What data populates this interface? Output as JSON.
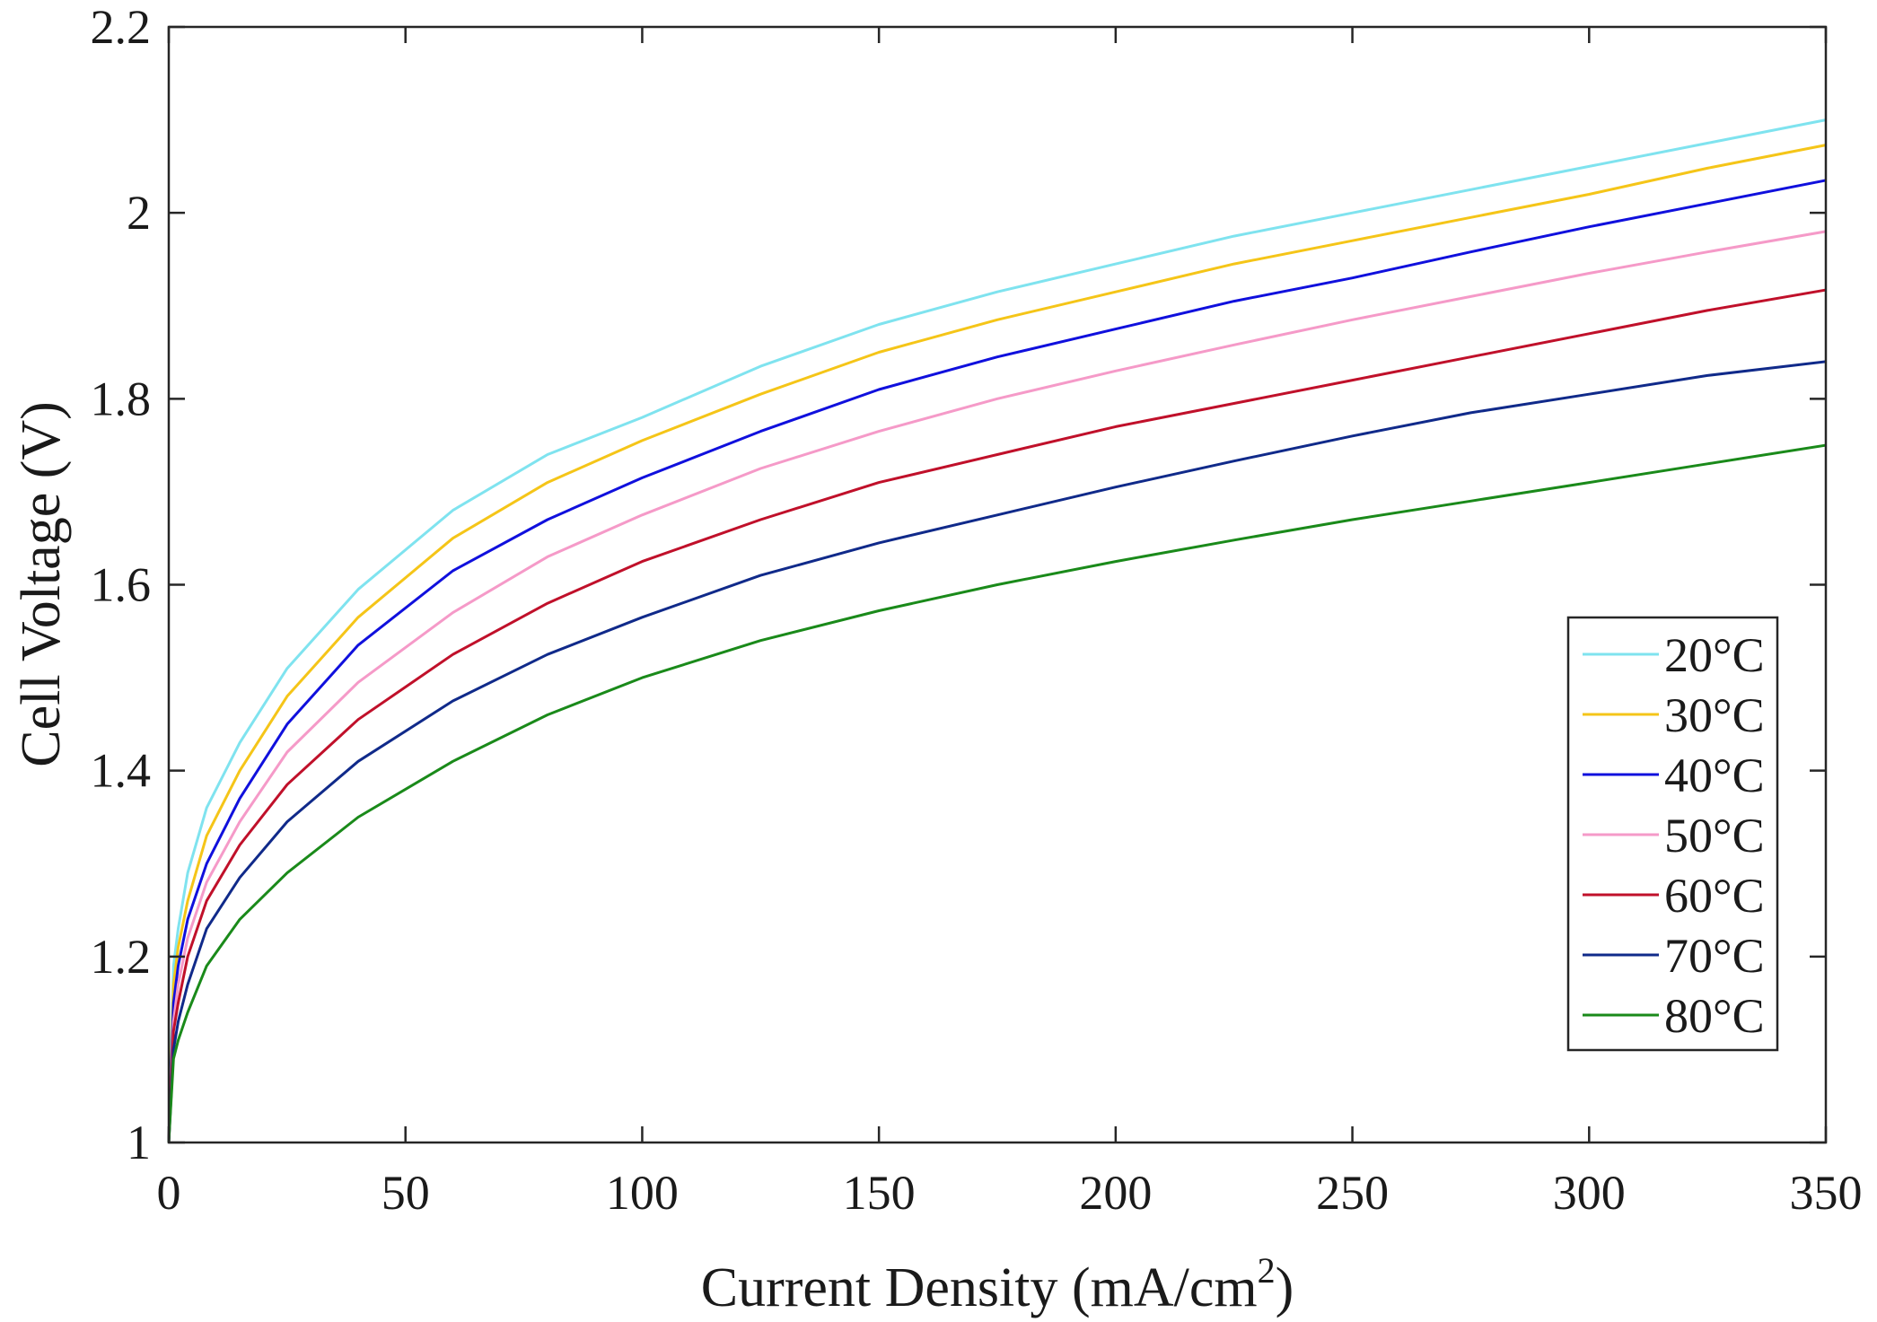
{
  "chart_data": {
    "type": "line",
    "title": "",
    "xlabel": "Current Density (mA/cm",
    "xlabel_sup": "2",
    "xlabel_tail": ")",
    "ylabel": "Cell Voltage (V)",
    "xlim": [
      0,
      350
    ],
    "ylim": [
      1,
      2.2
    ],
    "xticks": [
      0,
      50,
      100,
      150,
      200,
      250,
      300,
      350
    ],
    "yticks": [
      1,
      1.2,
      1.4,
      1.6,
      1.8,
      2,
      2.2
    ],
    "xtick_labels": [
      "0",
      "50",
      "100",
      "150",
      "200",
      "250",
      "300",
      "350"
    ],
    "ytick_labels": [
      "1",
      "1.2",
      "1.4",
      "1.6",
      "1.8",
      "2",
      "2.2"
    ],
    "grid": false,
    "legend_position": "lower-right",
    "x": [
      0,
      1,
      2,
      4,
      8,
      15,
      25,
      40,
      60,
      80,
      100,
      125,
      150,
      175,
      200,
      225,
      250,
      275,
      300,
      325,
      350
    ],
    "series": [
      {
        "name": "20°C",
        "color": "#7fe3ef",
        "values": [
          1.0,
          1.19,
          1.23,
          1.29,
          1.36,
          1.43,
          1.51,
          1.595,
          1.68,
          1.74,
          1.78,
          1.835,
          1.88,
          1.915,
          1.945,
          1.975,
          2.0,
          2.025,
          2.05,
          2.075,
          2.1
        ]
      },
      {
        "name": "30°C",
        "color": "#f5c518",
        "values": [
          1.0,
          1.17,
          1.21,
          1.26,
          1.33,
          1.4,
          1.48,
          1.565,
          1.65,
          1.71,
          1.755,
          1.805,
          1.85,
          1.885,
          1.915,
          1.945,
          1.97,
          1.995,
          2.02,
          2.048,
          2.073
        ]
      },
      {
        "name": "40°C",
        "color": "#1010dd",
        "values": [
          1.0,
          1.15,
          1.19,
          1.24,
          1.3,
          1.37,
          1.45,
          1.535,
          1.615,
          1.67,
          1.715,
          1.765,
          1.81,
          1.845,
          1.875,
          1.905,
          1.93,
          1.958,
          1.985,
          2.01,
          2.035
        ]
      },
      {
        "name": "50°C",
        "color": "#f59ac8",
        "values": [
          1.0,
          1.13,
          1.17,
          1.22,
          1.28,
          1.345,
          1.42,
          1.495,
          1.57,
          1.63,
          1.675,
          1.725,
          1.765,
          1.8,
          1.83,
          1.858,
          1.885,
          1.91,
          1.935,
          1.958,
          1.98
        ]
      },
      {
        "name": "60°C",
        "color": "#c0102a",
        "values": [
          1.0,
          1.12,
          1.15,
          1.2,
          1.26,
          1.32,
          1.385,
          1.455,
          1.525,
          1.58,
          1.625,
          1.67,
          1.71,
          1.74,
          1.77,
          1.795,
          1.82,
          1.845,
          1.87,
          1.895,
          1.917
        ]
      },
      {
        "name": "70°C",
        "color": "#102a8a",
        "values": [
          1.0,
          1.1,
          1.13,
          1.17,
          1.23,
          1.285,
          1.345,
          1.41,
          1.475,
          1.525,
          1.565,
          1.61,
          1.645,
          1.675,
          1.705,
          1.733,
          1.76,
          1.785,
          1.805,
          1.825,
          1.84
        ]
      },
      {
        "name": "80°C",
        "color": "#1a8a1a",
        "values": [
          1.0,
          1.09,
          1.11,
          1.14,
          1.19,
          1.24,
          1.29,
          1.35,
          1.41,
          1.46,
          1.5,
          1.54,
          1.572,
          1.6,
          1.625,
          1.648,
          1.67,
          1.69,
          1.71,
          1.73,
          1.75
        ]
      }
    ]
  }
}
